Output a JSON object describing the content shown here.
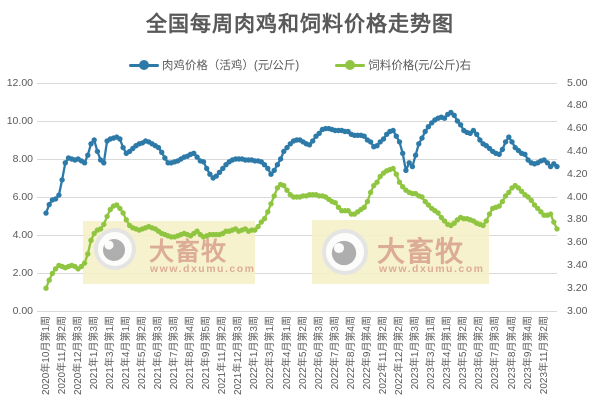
{
  "watermark": {
    "brand": "大畜牧",
    "url": "www.dxumu.com"
  },
  "chart_data": {
    "type": "line",
    "title": "全国每周肉鸡和饲料价格走势图",
    "grid": "horizontal",
    "legend_position": "top",
    "legend": [
      {
        "name": "肉鸡价格（活鸡）(元/公斤)",
        "color": "#2d7aa9",
        "axis": "left"
      },
      {
        "name": "饲料价格(元/公斤)右",
        "color": "#8fc540",
        "axis": "right"
      }
    ],
    "left_axis": {
      "min": 0,
      "max": 12,
      "step": 2,
      "ticks": [
        "0.00",
        "2.00",
        "4.00",
        "6.00",
        "8.00",
        "10.00",
        "12.00"
      ]
    },
    "right_axis": {
      "min": 3,
      "max": 5,
      "step": 0.2,
      "ticks": [
        "3.00",
        "3.20",
        "3.40",
        "3.60",
        "3.80",
        "4.00",
        "4.20",
        "4.40",
        "4.60",
        "4.80",
        "5.00"
      ]
    },
    "x_label_every": 5,
    "x_labels": [
      "2020年10月第1周",
      "2020年11月第2周",
      "2020年12月第3周",
      "2021年1月第3周",
      "2021年3月第1周",
      "2021年4月第1周",
      "2021年5月第2周",
      "2021年6月第3周",
      "2021年7月第3周",
      "2021年8月第4周",
      "2021年9月第5周",
      "2021年11月第2周",
      "2021年12月第3周",
      "2022年1月第3周",
      "2022年3月第1周",
      "2022年4月第1周",
      "2022年5月第2周",
      "2022年6月第3周",
      "2022年7月第3周",
      "2022年8月第4周",
      "2022年9月第4周",
      "2022年11月第2周",
      "2022年12月第2周",
      "2023年1月第3周",
      "2023年3月第1周",
      "2023年4月第1周",
      "2023年5月第2周",
      "2023年6月第2周",
      "2023年7月第3周",
      "2023年8月第4周",
      "2023年9月第4周",
      "2023年11月第2周"
    ],
    "series": [
      {
        "name": "肉鸡价格（活鸡）(元/公斤)",
        "axis": "left",
        "color": "#2d7aa9",
        "values": [
          5.15,
          5.6,
          5.85,
          5.9,
          6.1,
          6.9,
          7.8,
          8.05,
          8.0,
          7.95,
          8.0,
          7.9,
          7.8,
          8.2,
          8.8,
          9.0,
          8.4,
          7.95,
          7.8,
          8.95,
          9.05,
          9.1,
          9.15,
          9.05,
          8.6,
          8.3,
          8.4,
          8.55,
          8.7,
          8.8,
          8.85,
          8.95,
          8.9,
          8.8,
          8.7,
          8.6,
          8.35,
          8.05,
          7.8,
          7.8,
          7.85,
          7.9,
          8.0,
          8.1,
          8.15,
          8.25,
          8.3,
          8.1,
          7.9,
          7.85,
          7.5,
          7.2,
          7.0,
          7.1,
          7.3,
          7.5,
          7.7,
          7.85,
          7.95,
          8.0,
          8.0,
          8.0,
          7.95,
          7.95,
          7.95,
          7.9,
          7.9,
          7.85,
          7.7,
          7.5,
          7.2,
          7.4,
          7.7,
          8.0,
          8.4,
          8.6,
          8.8,
          8.95,
          9.0,
          9.0,
          8.9,
          8.8,
          8.75,
          8.95,
          9.2,
          9.35,
          9.55,
          9.6,
          9.6,
          9.55,
          9.5,
          9.5,
          9.5,
          9.45,
          9.45,
          9.3,
          9.25,
          9.25,
          9.25,
          9.2,
          9.0,
          8.9,
          8.65,
          8.7,
          8.9,
          9.05,
          9.3,
          9.45,
          9.5,
          9.2,
          8.9,
          8.3,
          7.4,
          7.8,
          7.6,
          8.2,
          8.8,
          9.1,
          9.45,
          9.7,
          9.9,
          10.05,
          10.15,
          10.2,
          10.15,
          10.35,
          10.45,
          10.3,
          10.0,
          9.8,
          9.5,
          9.4,
          9.35,
          9.5,
          9.3,
          9.0,
          8.8,
          8.7,
          8.55,
          8.4,
          8.3,
          8.25,
          8.5,
          8.9,
          9.15,
          8.9,
          8.6,
          8.45,
          8.3,
          8.25,
          7.95,
          7.8,
          7.75,
          7.8,
          7.9,
          7.95,
          7.8,
          7.6,
          7.75,
          7.6
        ]
      },
      {
        "name": "饲料价格(元/公斤)右",
        "axis": "right",
        "color": "#8fc540",
        "values": [
          3.2,
          3.27,
          3.33,
          3.37,
          3.4,
          3.39,
          3.38,
          3.39,
          3.4,
          3.39,
          3.37,
          3.39,
          3.42,
          3.5,
          3.62,
          3.68,
          3.71,
          3.72,
          3.76,
          3.83,
          3.89,
          3.92,
          3.93,
          3.9,
          3.86,
          3.8,
          3.75,
          3.73,
          3.72,
          3.71,
          3.72,
          3.73,
          3.74,
          3.73,
          3.72,
          3.7,
          3.68,
          3.67,
          3.66,
          3.65,
          3.65,
          3.66,
          3.67,
          3.68,
          3.67,
          3.66,
          3.68,
          3.7,
          3.67,
          3.65,
          3.66,
          3.67,
          3.67,
          3.67,
          3.67,
          3.68,
          3.7,
          3.7,
          3.71,
          3.72,
          3.7,
          3.71,
          3.72,
          3.7,
          3.71,
          3.71,
          3.74,
          3.78,
          3.81,
          3.87,
          3.94,
          4.01,
          4.08,
          4.11,
          4.1,
          4.06,
          4.02,
          4.0,
          4.0,
          4.0,
          4.01,
          4.01,
          4.02,
          4.02,
          4.02,
          4.01,
          4.01,
          4.0,
          3.98,
          3.96,
          3.95,
          3.91,
          3.88,
          3.88,
          3.88,
          3.85,
          3.85,
          3.87,
          3.89,
          3.91,
          3.96,
          4.04,
          4.1,
          4.13,
          4.18,
          4.21,
          4.23,
          4.24,
          4.25,
          4.2,
          4.13,
          4.09,
          4.06,
          4.04,
          4.03,
          4.03,
          4.01,
          4.0,
          3.96,
          3.93,
          3.9,
          3.88,
          3.86,
          3.82,
          3.79,
          3.76,
          3.75,
          3.77,
          3.8,
          3.82,
          3.81,
          3.81,
          3.8,
          3.79,
          3.77,
          3.76,
          3.75,
          3.79,
          3.85,
          3.9,
          3.91,
          3.92,
          3.96,
          4.01,
          4.04,
          4.08,
          4.1,
          4.08,
          4.05,
          4.02,
          4.0,
          3.97,
          3.93,
          3.9,
          3.87,
          3.84,
          3.84,
          3.85,
          3.78,
          3.72
        ]
      }
    ]
  }
}
